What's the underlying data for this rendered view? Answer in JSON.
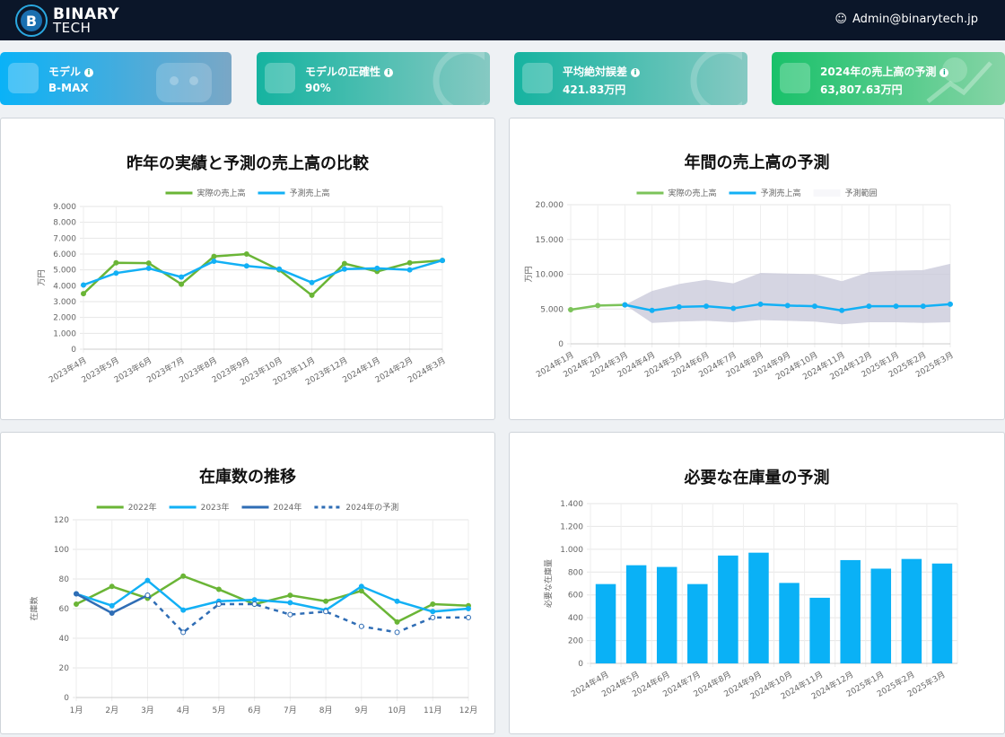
{
  "header": {
    "logo_line1": "BINARY",
    "logo_line2": "TECH",
    "user": "Admin@binarytech.jp"
  },
  "cards": [
    {
      "label": "モデル",
      "value": "B-MAX"
    },
    {
      "label": "モデルの正確性",
      "value": "90%"
    },
    {
      "label": "平均絶対誤差",
      "value": "421.83万円"
    },
    {
      "label": "2024年の売上高の予測",
      "value": "63,807.63万円"
    }
  ],
  "chart_data": [
    {
      "type": "line",
      "title": "昨年の実績と予測の売上高の比較",
      "y_label": "万円",
      "categories": [
        "2023年4月",
        "2023年5月",
        "2023年6月",
        "2023年7月",
        "2023年8月",
        "2023年9月",
        "2023年10月",
        "2023年11月",
        "2023年12月",
        "2024年1月",
        "2024年2月",
        "2024年3月"
      ],
      "series": [
        {
          "name": "実際の売上高",
          "color": "#6ab536",
          "values": [
            3500,
            5450,
            5430,
            4100,
            5850,
            6000,
            5000,
            3400,
            5400,
            4900,
            5450,
            5600
          ]
        },
        {
          "name": "予測売上高",
          "color": "#12b0f5",
          "values": [
            4050,
            4800,
            5100,
            4550,
            5550,
            5250,
            5050,
            4200,
            5050,
            5100,
            5000,
            5600
          ]
        }
      ],
      "ylim": [
        0,
        9000
      ],
      "yticks": [
        0,
        {
          "value": 1000,
          "label": "1.000"
        },
        {
          "value": 2000,
          "label": "2.000"
        },
        {
          "value": 3000,
          "label": "3.000"
        },
        {
          "value": 4000,
          "label": "4.000"
        },
        {
          "value": 5000,
          "label": "5.000"
        },
        {
          "value": 6000,
          "label": "6.000"
        },
        {
          "value": 7000,
          "label": "7.000"
        },
        {
          "value": 8000,
          "label": "8.000"
        },
        {
          "value": 9000,
          "label": "9.000"
        }
      ],
      "grid": true
    },
    {
      "type": "line",
      "title": "年間の売上高の予測",
      "y_label": "万円",
      "categories": [
        "2024年1月",
        "2024年2月",
        "2024年3月",
        "2024年4月",
        "2024年5月",
        "2024年6月",
        "2024年7月",
        "2024年8月",
        "2024年9月",
        "2024年10月",
        "2024年11月",
        "2024年12月",
        "2025年1月",
        "2025年2月",
        "2025年3月"
      ],
      "series": [
        {
          "name": "実際の売上高",
          "color": "#7cc35a",
          "values": [
            4900,
            5500,
            5600,
            null,
            null,
            null,
            null,
            null,
            null,
            null,
            null,
            null,
            null,
            null,
            null
          ]
        },
        {
          "name": "予測売上高",
          "color": "#12b0f5",
          "values": [
            null,
            null,
            5600,
            4800,
            5300,
            5400,
            5100,
            5700,
            5500,
            5400,
            4800,
            5400,
            5400,
            5400,
            5700
          ]
        },
        {
          "name": "予測範囲",
          "type": "range",
          "color": "#cacadb",
          "low": [
            null,
            null,
            5600,
            3000,
            3200,
            3300,
            3100,
            3400,
            3300,
            3200,
            2800,
            3100,
            3100,
            3000,
            3100
          ],
          "high": [
            null,
            null,
            5600,
            7600,
            8600,
            9200,
            8700,
            10200,
            10100,
            10000,
            9000,
            10300,
            10500,
            10600,
            11500
          ]
        }
      ],
      "ylim": [
        0,
        20000
      ],
      "yticks": [
        0,
        {
          "value": 5000,
          "label": "5.000"
        },
        {
          "value": 10000,
          "label": "10.000"
        },
        {
          "value": 15000,
          "label": "15.000"
        },
        {
          "value": 20000,
          "label": "20.000"
        }
      ],
      "grid": true
    },
    {
      "type": "line",
      "title": "在庫数の推移",
      "y_label": "在庫数",
      "categories": [
        "1月",
        "2月",
        "3月",
        "4月",
        "5月",
        "6月",
        "7月",
        "8月",
        "9月",
        "10月",
        "11月",
        "12月"
      ],
      "series": [
        {
          "name": "2022年",
          "color": "#6ab536",
          "values": [
            63,
            75,
            67,
            82,
            73,
            63,
            69,
            65,
            72,
            51,
            63,
            62
          ]
        },
        {
          "name": "2023年",
          "color": "#12b0f5",
          "values": [
            70,
            62,
            79,
            59,
            65,
            66,
            64,
            59,
            75,
            65,
            58,
            60
          ]
        },
        {
          "name": "2024年",
          "color": "#2f6db5",
          "values": [
            70,
            57,
            69,
            null,
            null,
            null,
            null,
            null,
            null,
            null,
            null,
            null
          ]
        },
        {
          "name": "2024年の予測",
          "color": "#2f6db5",
          "dash": true,
          "values": [
            null,
            null,
            69,
            44,
            63,
            63,
            56,
            58,
            48,
            44,
            54,
            54
          ]
        }
      ],
      "ylim": [
        0,
        120
      ],
      "yticks": [
        0,
        20,
        40,
        60,
        80,
        100,
        120
      ],
      "grid": true
    },
    {
      "type": "bar",
      "title": "必要な在庫量の予測",
      "y_label": "必要な在庫量",
      "color": "#0ab1f6",
      "categories": [
        "2024年4月",
        "2024年5月",
        "2024年6月",
        "2024年7月",
        "2024年8月",
        "2024年9月",
        "2024年10月",
        "2024年11月",
        "2024年12月",
        "2025年1月",
        "2025年2月",
        "2025年3月"
      ],
      "values": [
        695,
        860,
        845,
        695,
        945,
        970,
        705,
        575,
        905,
        830,
        915,
        875
      ],
      "ylim": [
        0,
        1400
      ],
      "yticks": [
        0,
        200,
        400,
        600,
        800,
        {
          "value": 1000,
          "label": "1.000"
        },
        {
          "value": 1200,
          "label": "1.200"
        },
        {
          "value": 1400,
          "label": "1.400"
        }
      ],
      "grid": true
    }
  ]
}
